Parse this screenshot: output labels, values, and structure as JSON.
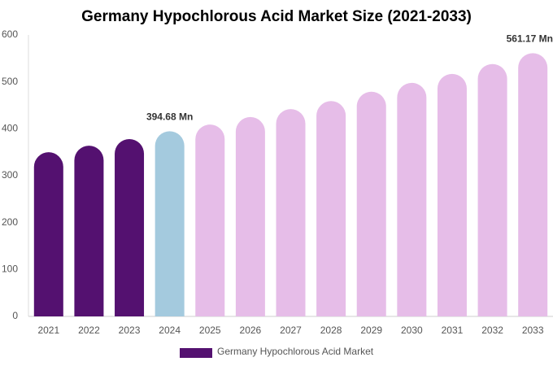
{
  "chart_data": {
    "type": "bar",
    "title": "Germany Hypochlorous Acid Market Size (2021-2033)",
    "categories": [
      "2021",
      "2022",
      "2023",
      "2024",
      "2025",
      "2026",
      "2027",
      "2028",
      "2029",
      "2030",
      "2031",
      "2032",
      "2033"
    ],
    "series": [
      {
        "name": "Germany Hypochlorous Acid Market",
        "color": "#541170",
        "values": [
          350,
          364,
          378,
          394.68,
          409,
          425,
          442,
          459,
          479,
          498,
          517,
          538,
          561.17
        ],
        "value_labels": [
          null,
          null,
          null,
          "394.68 Mn",
          null,
          null,
          null,
          null,
          null,
          null,
          null,
          null,
          "561.17 Mn"
        ],
        "colors": [
          "#541170",
          "#541170",
          "#541170",
          "#a4cade",
          "#e6bde8",
          "#e6bde8",
          "#e6bde8",
          "#e6bde8",
          "#e6bde8",
          "#e6bde8",
          "#e6bde8",
          "#e6bde8",
          "#e6bde8"
        ]
      }
    ],
    "ylim": [
      0,
      600
    ],
    "yticks": [
      0,
      100,
      200,
      300,
      400,
      500,
      600
    ],
    "grid": false
  }
}
